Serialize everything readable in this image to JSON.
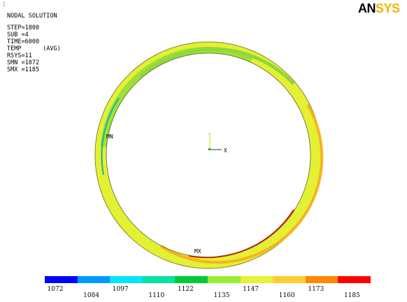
{
  "window": {
    "number": "1"
  },
  "logo": {
    "an": "AN",
    "sys": "SYS"
  },
  "info": {
    "title": "NODAL SOLUTION",
    "lines": [
      "STEP=1800",
      "SUB =4",
      "TIME=6000",
      "TEMP      (AVG)",
      "RSYS=11",
      "SMN =1072",
      "SMX =1185"
    ]
  },
  "plot": {
    "mn_label": "MN",
    "mx_label": "MX",
    "axis_y_label": "Y",
    "axis_x_label": "X"
  },
  "legend": {
    "colors": [
      "#0000ff",
      "#0099ff",
      "#00e5ff",
      "#00e5a0",
      "#00cc33",
      "#99ee33",
      "#e6f233",
      "#ffcc33",
      "#ff8800",
      "#ff0000"
    ],
    "ticks_upper": [
      "1072",
      "1097",
      "1122",
      "1147",
      "1173"
    ],
    "ticks_lower": [
      "1084",
      "1110",
      "1135",
      "1160",
      "1185"
    ]
  }
}
